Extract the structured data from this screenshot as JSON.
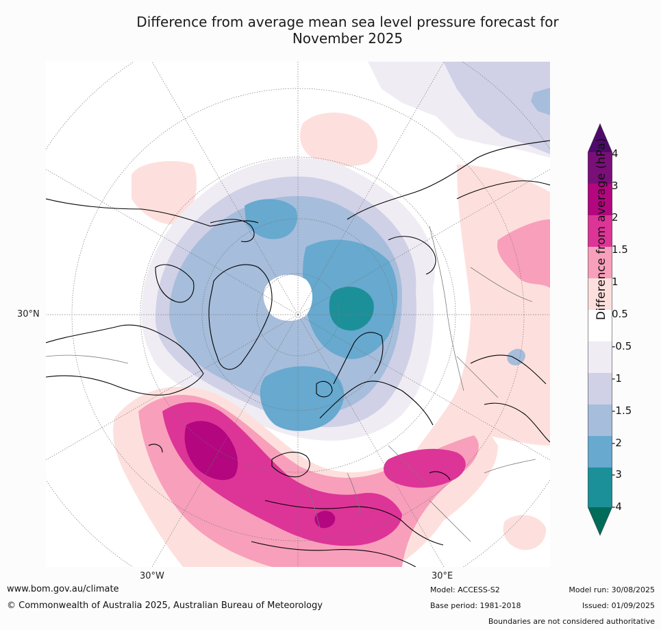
{
  "title": "Difference from average mean sea level pressure forecast for November 2025",
  "title_line1": "Difference from average mean sea level pressure forecast for",
  "title_line2": "November 2025",
  "map": {
    "projection": "north-polar-stereographic",
    "graticule_labels": {
      "lat_30n": "30°N",
      "lon_30w": "30°W",
      "lon_30e": "30°E"
    }
  },
  "colorbar": {
    "title": "Difference from average (hPa)",
    "ticks": [
      "4",
      "3",
      "2",
      "1.5",
      "1",
      "0.5",
      "-0.5",
      "-1",
      "-1.5",
      "-2",
      "-3",
      "-4"
    ],
    "colors": {
      "above_4": "#4d0a6b",
      "3_to_4": "#7a0f7a",
      "2_to_3": "#b3067f",
      "1.5_to_2": "#dd3497",
      "1_to_1.5": "#f89fbb",
      "0.5_to_1": "#fde0dd",
      "-0.5_to_0.5": "#ffffff",
      "-1_to_-0.5": "#f0ecf4",
      "-1.5_to_-1": "#d0d1e6",
      "-2_to_-1.5": "#a6bddb",
      "-3_to_-2": "#67a9cf",
      "-4_to_-3": "#1c9099",
      "below_-4": "#016c59"
    }
  },
  "footer": {
    "website": "www.bom.gov.au/climate",
    "copyright": "© Commonwealth of Australia 2025, Australian Bureau of Meteorology",
    "model": "Model: ACCESS-S2",
    "base_period": "Base period: 1981-2018",
    "model_run": "Model run: 30/08/2025",
    "issued": "Issued: 01/09/2025",
    "disclaimer": "Boundaries are not considered authoritative"
  }
}
